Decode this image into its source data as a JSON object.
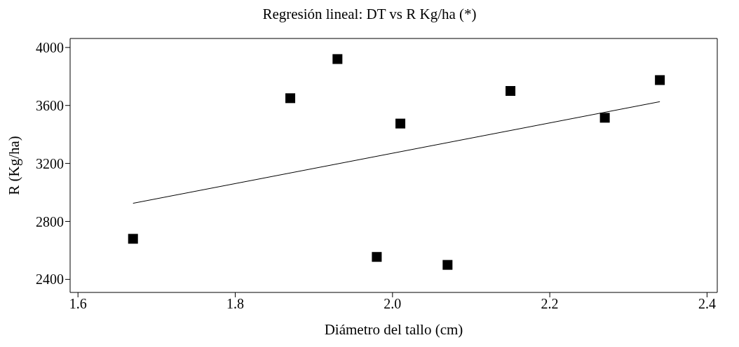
{
  "chart_data": {
    "type": "scatter",
    "title": "Regresión lineal: DT vs R Kg/ha (*)",
    "xlabel": "Diámetro del tallo (cm)",
    "ylabel": "R (Kg/ha)",
    "xlim": [
      1.59,
      2.413
    ],
    "xticks": [
      {
        "value": 1.6,
        "label": "1.6"
      },
      {
        "value": 1.8,
        "label": "1.8"
      },
      {
        "value": 2.0,
        "label": "2.0"
      },
      {
        "value": 2.2,
        "label": "2.2"
      },
      {
        "value": 2.4,
        "label": "2.4"
      }
    ],
    "ylim": [
      2310,
      4062
    ],
    "yticks": [
      2400,
      2800,
      3200,
      3600,
      4000
    ],
    "grid": false,
    "legend": false,
    "marker": "square",
    "series": [
      {
        "type": "scatter",
        "color": "#000000",
        "x": [
          1.67,
          1.87,
          1.93,
          1.98,
          2.01,
          2.07,
          2.15,
          2.27,
          2.34
        ],
        "values": [
          2680,
          3650,
          3920,
          2555,
          3475,
          2500,
          3700,
          3515,
          3775
        ]
      },
      {
        "type": "line",
        "color": "#000000",
        "marker": "none",
        "x": [
          1.67,
          2.34
        ],
        "values": [
          2925,
          3626
        ]
      }
    ]
  }
}
